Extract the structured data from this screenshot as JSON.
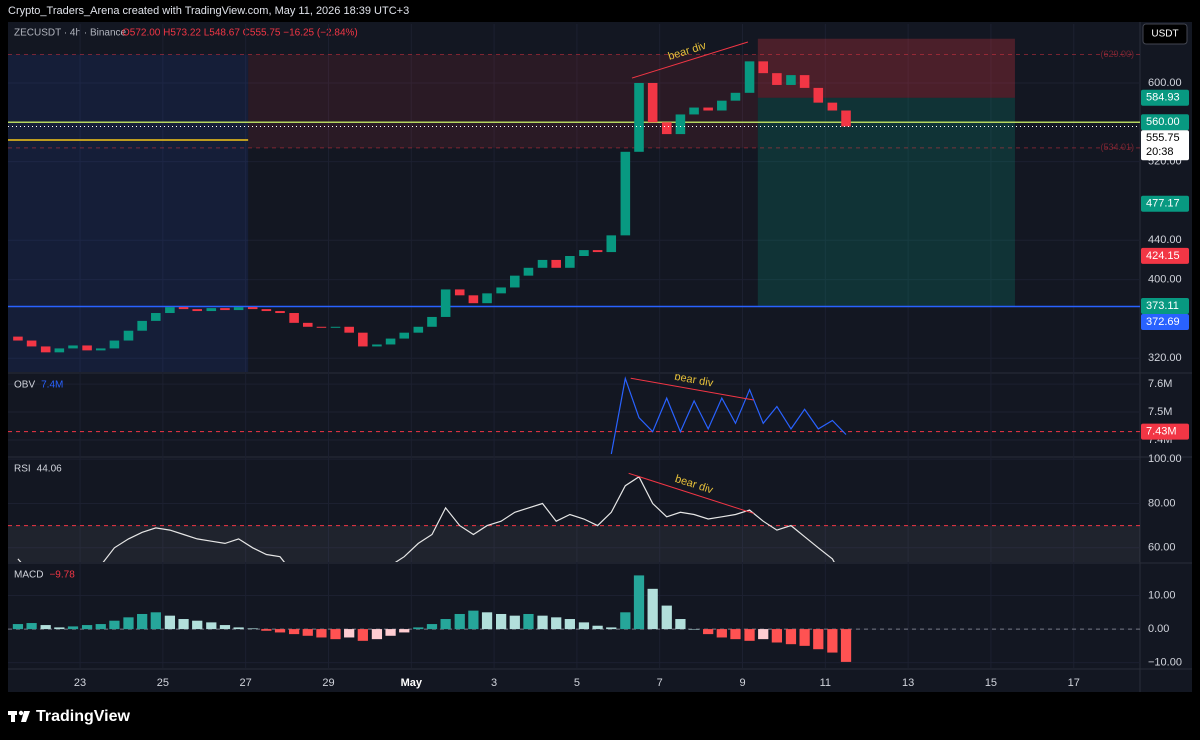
{
  "header": {
    "attribution": "Crypto_Traders_Arena created with TradingView.com, May 11, 2026 18:39 UTC+3",
    "symbol": "ZECUSDT · 4h · Binance",
    "ohlc": "O572.00 H573.22 L548.67 C555.75 −16.25 (−2.84%)",
    "currency": "USDT",
    "logo": "TradingView"
  },
  "chart_data": [
    {
      "type": "candlestick",
      "x": [
        21.5,
        21.83,
        22.17,
        22.5,
        22.83,
        23.17,
        23.5,
        23.83,
        24.17,
        24.5,
        24.83,
        25.17,
        25.5,
        25.83,
        26.17,
        26.5,
        26.83,
        27.17,
        27.5,
        27.83,
        28.17,
        28.5,
        28.83,
        29.17,
        29.5,
        29.83,
        30.17,
        30.5,
        30.83,
        31.17,
        31.5,
        31.83,
        32.17,
        32.5,
        32.83,
        33.17,
        33.5,
        33.83,
        34.17,
        34.5,
        34.83,
        35.17,
        35.5,
        35.83,
        36.17,
        36.5,
        36.83,
        37.17,
        37.5,
        37.83,
        38.17,
        38.5,
        38.83,
        39.17,
        39.5,
        39.83,
        40.17,
        40.5,
        40.83,
        41.17,
        41.5
      ],
      "open": [
        342,
        338,
        332,
        326,
        330,
        333,
        328,
        330,
        338,
        348,
        358,
        366,
        372,
        370,
        368,
        371,
        369,
        372,
        370,
        368,
        366,
        356,
        352,
        351,
        352,
        346,
        332,
        334,
        340,
        346,
        352,
        362,
        390,
        384,
        376,
        386,
        392,
        404,
        412,
        420,
        412,
        424,
        430,
        428,
        445,
        530,
        600,
        560,
        548,
        568,
        575,
        572,
        582,
        590,
        622,
        610,
        598,
        608,
        595,
        580,
        572
      ],
      "close": [
        338,
        332,
        326,
        330,
        333,
        328,
        330,
        338,
        348,
        358,
        366,
        372,
        370,
        368,
        371,
        369,
        372,
        370,
        368,
        366,
        356,
        352,
        351,
        352,
        346,
        332,
        334,
        340,
        346,
        352,
        362,
        390,
        384,
        376,
        386,
        392,
        404,
        412,
        420,
        412,
        424,
        430,
        428,
        445,
        530,
        600,
        560,
        548,
        568,
        575,
        572,
        582,
        590,
        622,
        610,
        598,
        608,
        595,
        580,
        572,
        555.75
      ],
      "colors": {
        "up": "#089981",
        "down": "#f23645"
      },
      "xlim": [
        21.26,
        48.6
      ],
      "xticks": [
        23,
        25,
        27,
        29,
        {
          "value": 31,
          "label": "May"
        },
        {
          "value": 33,
          "label": "3"
        },
        {
          "value": 35,
          "label": "5"
        },
        {
          "value": 37,
          "label": "7"
        },
        {
          "value": 39,
          "label": "9"
        },
        {
          "value": 41,
          "label": "11"
        },
        {
          "value": 43,
          "label": "13"
        },
        {
          "value": 45,
          "label": "15"
        },
        {
          "value": 47,
          "label": "17"
        }
      ],
      "ylim": [
        306,
        660
      ],
      "yticks": [
        {
          "value": 600,
          "label": "600.00"
        },
        {
          "value": 520,
          "label": "520.00"
        },
        {
          "value": 440,
          "label": "440.00"
        },
        {
          "value": 400,
          "label": "400.00"
        },
        {
          "value": 320,
          "label": "320.00"
        }
      ],
      "grid": true,
      "zones": [
        {
          "x": [
            21.26,
            27.06
          ],
          "y": [
            629,
            306
          ],
          "color": "rgba(41,98,255,0.10)"
        },
        {
          "x": [
            27.06,
            39.37
          ],
          "y": [
            629,
            534.01
          ],
          "color": "rgba(242,54,69,0.10)"
        },
        {
          "x": [
            39.37,
            45.58
          ],
          "y": [
            645,
            584.93
          ],
          "color": "rgba(242,54,69,0.25)"
        },
        {
          "x": [
            39.37,
            45.58
          ],
          "y": [
            584.93,
            373.11
          ],
          "color": "rgba(8,153,129,0.22)"
        }
      ],
      "levels": [
        {
          "value": 629,
          "label": "(629.00)",
          "color": "rgba(242,54,69,0.45)",
          "dash": true
        },
        {
          "value": 534.01,
          "label": "(534.01)",
          "color": "rgba(242,54,69,0.45)",
          "dash": true
        },
        {
          "value": 560,
          "color": "#b5d55f"
        },
        {
          "value": 542,
          "x": [
            21.26,
            27.06
          ],
          "color": "#f5c518"
        },
        {
          "value": 372.69,
          "color": "#2962ff"
        }
      ],
      "annotations": [
        {
          "text": "bear div",
          "x": [
            36.33,
            39.13
          ],
          "y": [
            605,
            641.7
          ],
          "color": "#f23645",
          "text_color": "#e6c03a"
        }
      ],
      "badges": [
        {
          "value": 584.93,
          "label": "584.93",
          "color": "#089981"
        },
        {
          "value": 560,
          "label": "560.00",
          "color": "#089981"
        },
        {
          "value": 555.75,
          "label": "555.75",
          "color": "#ffffff",
          "countdown": "20:38"
        },
        {
          "value": 477.17,
          "label": "477.17",
          "color": "#089981"
        },
        {
          "value": 424.15,
          "label": "424.15",
          "color": "#f23645"
        },
        {
          "value": 373.11,
          "label": "373.11",
          "color": "#089981"
        },
        {
          "value": 372.69,
          "label": "372.69",
          "color": "#2962ff"
        }
      ]
    },
    {
      "type": "line",
      "name": "OBV",
      "value_label": "7.4M",
      "label_color": "#2962ff",
      "color": "#2962ff",
      "values": [
        null,
        null,
        null,
        null,
        null,
        null,
        null,
        null,
        null,
        null,
        null,
        null,
        null,
        null,
        null,
        null,
        null,
        null,
        null,
        null,
        null,
        null,
        null,
        null,
        null,
        null,
        null,
        null,
        null,
        null,
        null,
        null,
        null,
        null,
        null,
        null,
        null,
        null,
        null,
        null,
        null,
        null,
        null,
        7350000,
        7620000,
        7480000,
        7430000,
        7550000,
        7430000,
        7540000,
        7440000,
        7550000,
        7460000,
        7580000,
        7460000,
        7520000,
        7440000,
        7510000,
        7440000,
        7470000,
        7420000
      ],
      "ylim": [
        7343000,
        7636000
      ],
      "yticks": [
        {
          "value": 7600000,
          "label": "7.6M"
        },
        {
          "value": 7500000,
          "label": "7.5M"
        },
        {
          "value": 7400000,
          "label": "7.4M"
        }
      ],
      "levels": [
        {
          "value": 7430000,
          "color": "#f23645",
          "dash": true
        }
      ],
      "annotations": [
        {
          "text": "bear div",
          "x": [
            36.3,
            39.27
          ],
          "y": [
            7621000,
            7543000
          ],
          "color": "#f23645",
          "text_color": "#e6c03a"
        }
      ],
      "badges": [
        {
          "value": 7430000,
          "label": "7.43M",
          "color": "#f23645"
        }
      ]
    },
    {
      "type": "line",
      "name": "RSI",
      "value_label": "44.06",
      "label_color": "#d1d4dc",
      "color": "#e6e6e6",
      "values": [
        55,
        48,
        45,
        50,
        52,
        50,
        52,
        60,
        64,
        67,
        69,
        68,
        66,
        64,
        63,
        62,
        64,
        60,
        57,
        56,
        48,
        45,
        46,
        50,
        45,
        42,
        47,
        52,
        56,
        62,
        66,
        78,
        70,
        66,
        70,
        72,
        76,
        78,
        80,
        72,
        75,
        73,
        70,
        76,
        88,
        92,
        80,
        74,
        76,
        75,
        73,
        74,
        75,
        77,
        72,
        68,
        70,
        65,
        60,
        55,
        44.06
      ],
      "ylim": [
        53.6,
        100.5
      ],
      "yticks": [
        {
          "value": 100,
          "label": "100.00"
        },
        {
          "value": 80,
          "label": "80.00"
        },
        {
          "value": 60,
          "label": "60.00"
        }
      ],
      "band": {
        "range": [
          30,
          70
        ],
        "color": "rgba(120,123,134,0.12)"
      },
      "levels": [
        {
          "value": 70,
          "color": "#f23645",
          "dash": true
        }
      ],
      "annotations": [
        {
          "text": "bear div",
          "x": [
            36.25,
            39.27
          ],
          "y": [
            93.6,
            75.5
          ],
          "color": "#f23645",
          "text_color": "#e6c03a"
        }
      ]
    },
    {
      "type": "histogram",
      "name": "MACD",
      "value_label": "−9.78",
      "label_color": "#f23645",
      "values": [
        1.5,
        1.8,
        1.2,
        0.5,
        0.8,
        1.2,
        1.5,
        2.5,
        3.5,
        4.5,
        5,
        4,
        3,
        2.5,
        2,
        1.2,
        0.5,
        0.2,
        -0.5,
        -1,
        -1.5,
        -2,
        -2.5,
        -3,
        -2.5,
        -3.5,
        -3,
        -2,
        -1,
        0.5,
        1.5,
        3,
        4.5,
        5.5,
        5,
        4.5,
        4,
        4.5,
        4,
        3.5,
        3,
        2,
        1,
        0.5,
        5,
        16,
        12,
        7,
        3,
        0,
        -1.5,
        -2.5,
        -3,
        -3.5,
        -3,
        -4,
        -4.5,
        -5,
        -6,
        -7,
        -9.78
      ],
      "colors": {
        "up_grow": "#26a69a",
        "up_fall": "#b2dfdb",
        "down_grow": "#ff5252",
        "down_fall": "#ffcdd2"
      },
      "ylim": [
        -11.6,
        19.4
      ],
      "yticks": [
        {
          "value": 10,
          "label": "10.00"
        },
        {
          "value": 0,
          "label": "0.00"
        },
        {
          "value": -10,
          "label": "−10.00"
        }
      ],
      "levels": [
        {
          "value": 0,
          "color": "#787b86",
          "dash": true
        }
      ]
    }
  ]
}
